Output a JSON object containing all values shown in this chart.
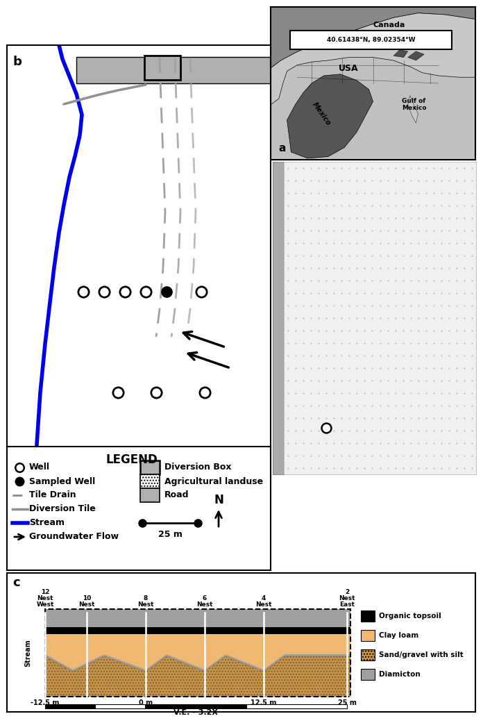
{
  "coords_text": "40.61438°N, 89.02354°W",
  "canada_label": "Canada",
  "usa_label": "USA",
  "mexico_label": "Mexico",
  "gulf_label": "Gulf of\nMexico",
  "legend_title": "LEGEND",
  "scale_label": "25 m",
  "north_label": "N",
  "stream_label": "Stream",
  "soil_labels": [
    "Organic topsoil",
    "Clay loam",
    "Sand/gravel with silt",
    "Diamicton"
  ],
  "soil_colors": [
    "#000000",
    "#f0b870",
    "#c8944a",
    "#a0a0a0"
  ],
  "scale_bar_label": "V.E. - 3.2X",
  "bg_color": "#ffffff",
  "map_ocean_gray": "#c0c0c0",
  "map_light_gray": "#c8c8c8",
  "map_canada_gray": "#888888",
  "map_mexico_dark": "#555555",
  "stream_color": "#0000ee",
  "road_color": "#b0b0b0",
  "diversion_box_color": "#b0b0b0",
  "tile_drain_color": "#a0a0a0",
  "diversion_tile_color": "#909090",
  "right_strip_color": "#aaaaaa",
  "right_dot_bg": "#f0f0f0"
}
